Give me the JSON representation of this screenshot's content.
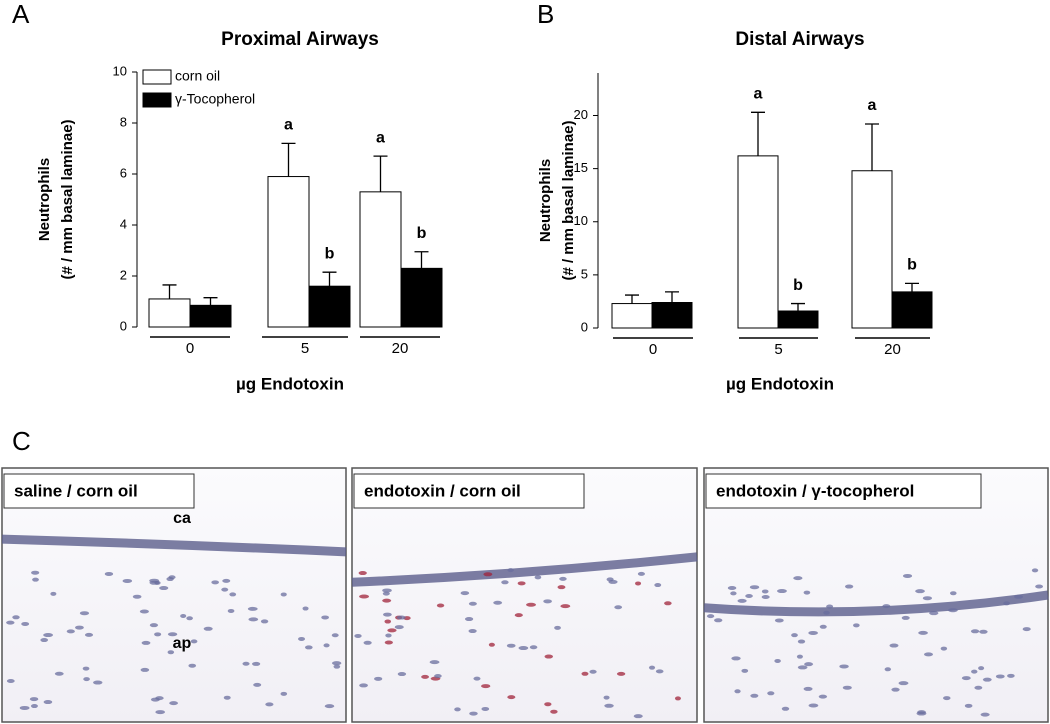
{
  "chart_data": [
    {
      "type": "bar",
      "panel_label": "A",
      "title": "Proximal Airways",
      "ylabel": [
        "Neutrophils",
        "(# / mm basal laminae)"
      ],
      "xlabel": "µg Endotoxin",
      "categories": [
        "0",
        "5",
        "20"
      ],
      "series": [
        {
          "name": "corn oil",
          "color": "#ffffff",
          "values": [
            1.1,
            5.9,
            5.3
          ],
          "errors": [
            0.55,
            1.3,
            1.4
          ],
          "labels": [
            null,
            "a",
            "a"
          ]
        },
        {
          "name": "γ-Tocopherol",
          "color": "#000000",
          "values": [
            0.85,
            1.6,
            2.3
          ],
          "errors": [
            0.3,
            0.55,
            0.65
          ],
          "labels": [
            null,
            "b",
            "b"
          ]
        }
      ],
      "ylim": [
        0,
        10
      ],
      "yticks": [
        0,
        2,
        4,
        6,
        8,
        10
      ],
      "legend": "top-left"
    },
    {
      "type": "bar",
      "panel_label": "B",
      "title": "Distal Airways",
      "ylabel": [
        "Neutrophils",
        "(# / mm basal laminae)"
      ],
      "xlabel": "µg Endotoxin",
      "categories": [
        "0",
        "5",
        "20"
      ],
      "series": [
        {
          "color": "#ffffff",
          "values": [
            2.3,
            16.2,
            14.8
          ],
          "errors": [
            0.8,
            4.1,
            4.4
          ],
          "labels": [
            null,
            "a",
            "a"
          ]
        },
        {
          "color": "#000000",
          "values": [
            2.4,
            1.6,
            3.4
          ],
          "errors": [
            1.0,
            0.7,
            0.8
          ],
          "labels": [
            null,
            "b",
            "b"
          ]
        }
      ],
      "ylim": [
        0,
        24
      ],
      "yticks": [
        0,
        5,
        10,
        15,
        20
      ]
    }
  ],
  "panel_c": {
    "label": "C",
    "images": [
      {
        "caption": "saline / corn oil",
        "annotations": [
          "ca",
          "ap"
        ]
      },
      {
        "caption": "endotoxin / corn oil"
      },
      {
        "caption": "endotoxin / γ-tocopherol"
      }
    ]
  }
}
